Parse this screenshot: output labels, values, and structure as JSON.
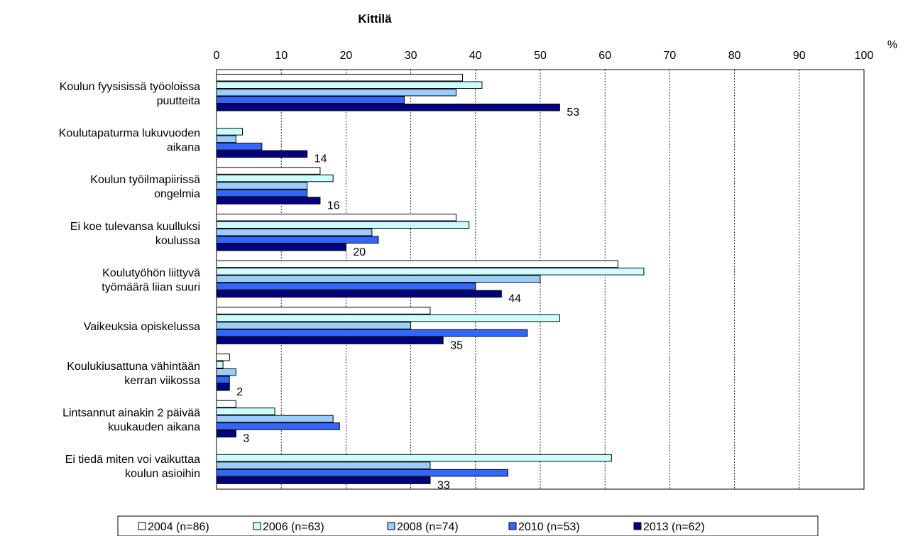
{
  "chart_data": {
    "type": "bar",
    "orientation": "horizontal",
    "title": "Kittilä",
    "unit": "%",
    "xlim": [
      0,
      100
    ],
    "ticks": [
      "0",
      "10",
      "20",
      "30",
      "40",
      "50",
      "60",
      "70",
      "80",
      "90",
      "100"
    ],
    "grid": true,
    "legend_position": "bottom",
    "categories": [
      [
        "Koulun fyysisissä työoloissa",
        "puutteita"
      ],
      [
        "Koulutapaturma lukuvuoden",
        "aikana"
      ],
      [
        "Koulun työilmapiirissä",
        "ongelmia"
      ],
      [
        "Ei koe tulevansa kuulluksi",
        "koulussa"
      ],
      [
        "Koulutyöhön liittyvä",
        "työmäärä liian suuri"
      ],
      [
        "Vaikeuksia opiskelussa"
      ],
      [
        "Koulukiusattuna vähintään",
        "kerran viikossa"
      ],
      [
        "Lintsannut ainakin 2 päivää",
        "kuukauden aikana"
      ],
      [
        "Ei tiedä miten voi vaikuttaa",
        "koulun asioihin"
      ]
    ],
    "series": [
      {
        "name": "2004 (n=86)",
        "color": "#ffffff",
        "values": [
          38,
          null,
          16,
          37,
          62,
          33,
          2,
          3,
          null
        ]
      },
      {
        "name": "2006 (n=63)",
        "color": "#ccffff",
        "values": [
          41,
          4,
          18,
          39,
          66,
          53,
          1,
          9,
          61
        ]
      },
      {
        "name": "2008 (n=74)",
        "color": "#99ccff",
        "values": [
          37,
          3,
          14,
          24,
          50,
          30,
          3,
          18,
          33
        ]
      },
      {
        "name": "2010 (n=53)",
        "color": "#3366ff",
        "values": [
          29,
          7,
          14,
          25,
          40,
          48,
          2,
          19,
          45
        ]
      },
      {
        "name": "2013 (n=62)",
        "color": "#000080",
        "values": [
          53,
          14,
          16,
          20,
          44,
          35,
          2,
          3,
          33
        ]
      }
    ],
    "data_labels": [
      "53",
      "14",
      "16",
      "20",
      "44",
      "35",
      "2",
      "3",
      "33"
    ]
  }
}
